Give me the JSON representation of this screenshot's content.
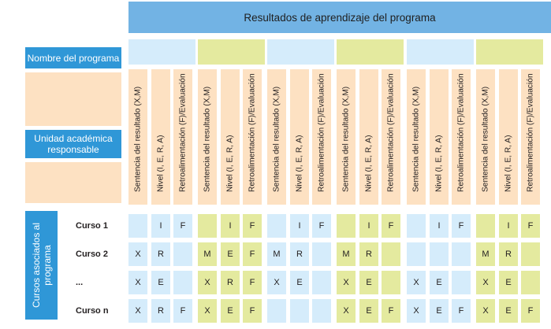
{
  "title": "Resultados de aprendizaje del programa",
  "program_name_label": "Nombre del programa",
  "academic_unit_label": "Unidad académica responsable",
  "courses_label": "Cursos asociados al programa",
  "column_headers": [
    "Sentencia del resultado (X,M)",
    "Nivel (I, E, R, A)",
    "Retroalimentación (F)/Evaluación"
  ],
  "group_count": 6,
  "colors": {
    "title": "#72b3e4",
    "label": "#2f97d7",
    "peach": "#fde1c2",
    "light_blue": "#d5ecfb",
    "light_green": "#e4ea9f"
  },
  "rows": [
    {
      "course": "Curso 1",
      "cells": [
        "",
        "I",
        "F",
        "",
        "I",
        "F",
        "",
        "I",
        "F",
        "",
        "I",
        "F",
        "",
        "I",
        "F",
        "",
        "I",
        "F"
      ]
    },
    {
      "course": "Curso 2",
      "cells": [
        "X",
        "R",
        "",
        "M",
        "E",
        "F",
        "M",
        "R",
        "",
        "M",
        "R",
        "",
        "",
        "",
        "",
        "M",
        "R",
        ""
      ]
    },
    {
      "course": "...",
      "cells": [
        "X",
        "E",
        "",
        "X",
        "R",
        "F",
        "X",
        "E",
        "",
        "X",
        "E",
        "",
        "X",
        "E",
        "",
        "X",
        "E",
        ""
      ]
    },
    {
      "course": "Curso n",
      "cells": [
        "X",
        "R",
        "F",
        "X",
        "E",
        "F",
        "",
        "",
        "",
        "X",
        "E",
        "F",
        "X",
        "E",
        "F",
        "X",
        "E",
        "F"
      ]
    }
  ]
}
